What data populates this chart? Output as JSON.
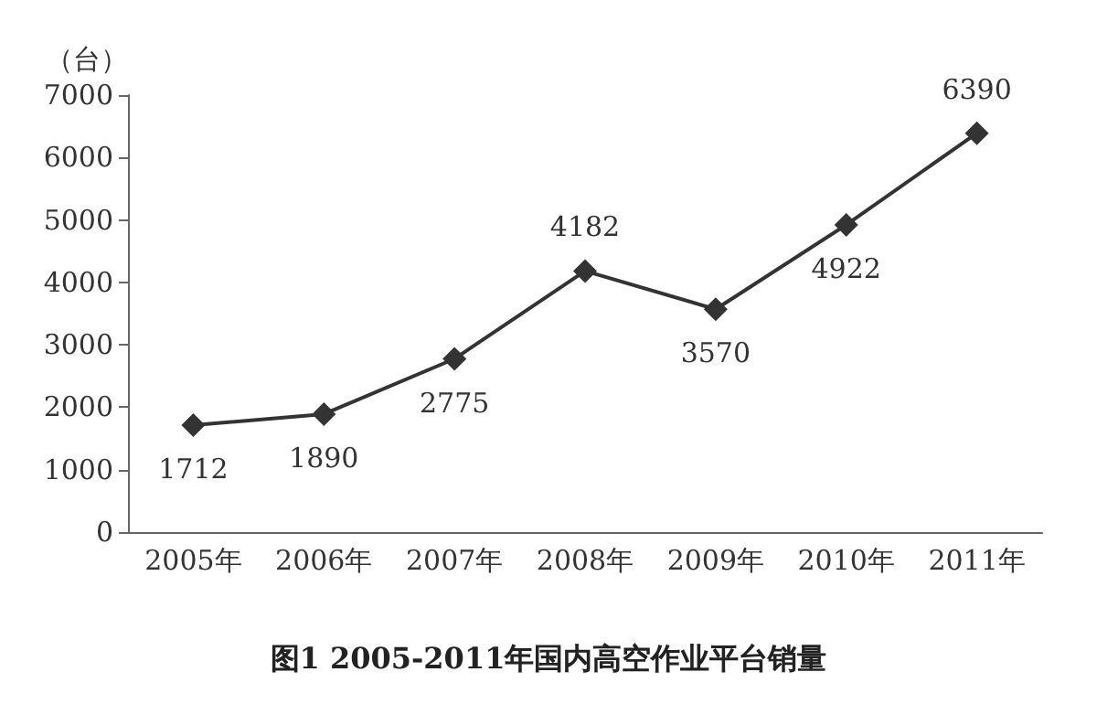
{
  "chart_data": {
    "type": "line",
    "title": "图1 2005-2011年国内高空作业平台销量",
    "ylabel": "（台）",
    "categories": [
      "2005年",
      "2006年",
      "2007年",
      "2008年",
      "2009年",
      "2010年",
      "2011年"
    ],
    "series": [
      {
        "color": "#333333",
        "values": [
          1712,
          1890,
          2775,
          4182,
          3570,
          4922,
          6390
        ]
      }
    ],
    "ylim": [
      0,
      7000
    ],
    "yticks": [
      0,
      1000,
      2000,
      3000,
      4000,
      5000,
      6000,
      7000
    ],
    "data_labels": true,
    "marker": "diamond",
    "line_style": "solid",
    "grid": false
  }
}
